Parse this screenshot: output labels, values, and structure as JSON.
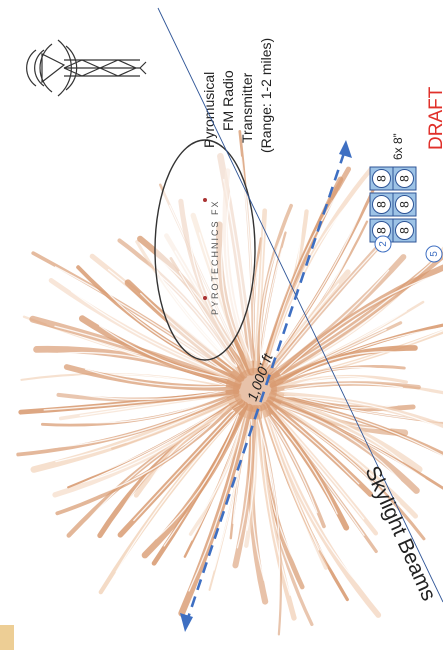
{
  "header": {
    "draft_label": "DRAFT",
    "company_logo_text": "PYROTECHNICS FX"
  },
  "transmitter": {
    "icon": "radio-tower-icon",
    "line1": "Pyromusical",
    "line2": "FM Radio",
    "line3": "Transmitter",
    "line4": "(Range: 1-2 miles)"
  },
  "firework": {
    "icon": "firework-burst-icon",
    "distance_label": "1,000’ ft"
  },
  "shell_group": {
    "size_label": "6x 8”",
    "shell_label": "8",
    "count_badge": "2",
    "position_badge": "5"
  },
  "skylight": {
    "label": "Skylight Beams"
  },
  "colors": {
    "draft": "#e0302a",
    "burst": "#d89a70",
    "burst_light": "#f3d6bf",
    "dimension_line": "#3e6fc2",
    "shell_box": "#9dc3e6",
    "beam_line": "#2f5597"
  }
}
